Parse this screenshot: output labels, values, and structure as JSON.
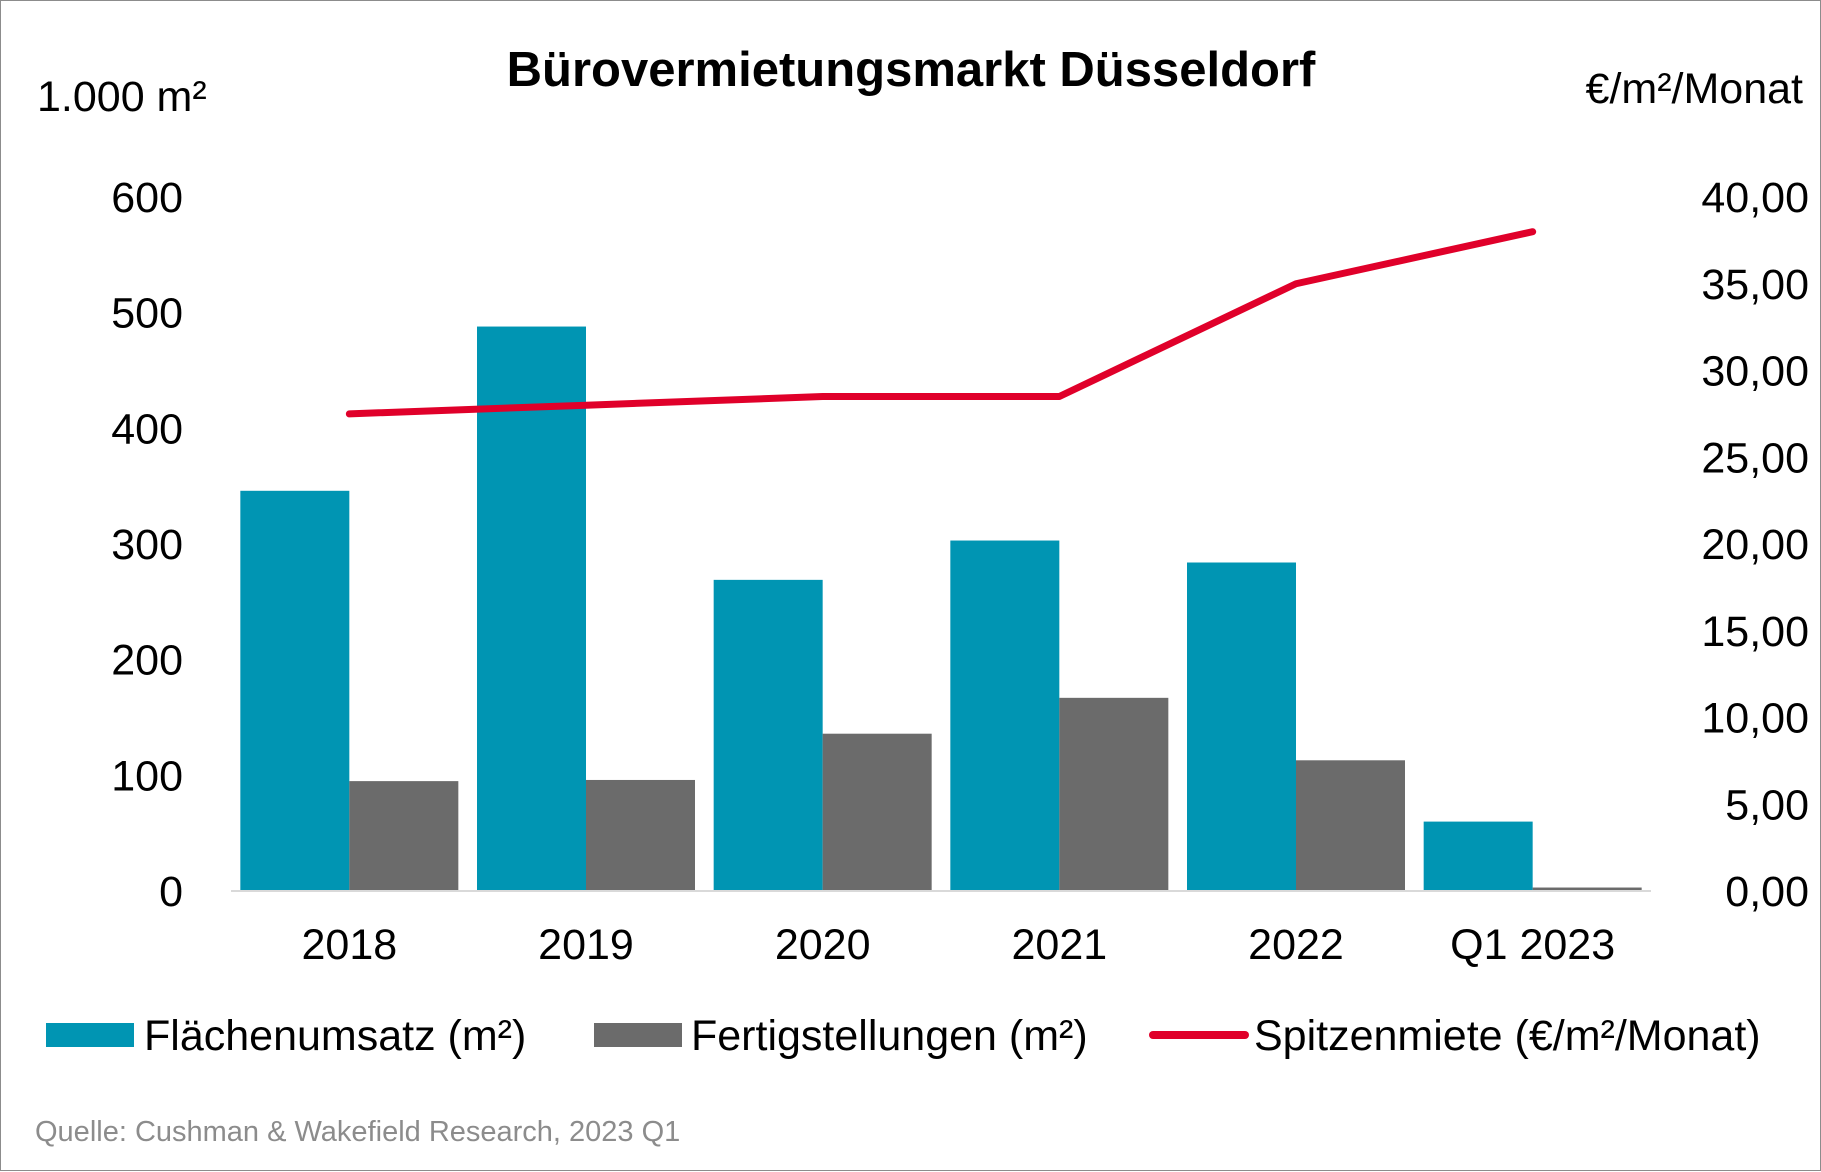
{
  "chart_data": {
    "type": "bar",
    "title": "Bürovermietungsmarkt Düsseldorf",
    "ylabel_left": "1.000 m²",
    "ylabel_right": "€/m²/Monat",
    "categories": [
      "2018",
      "2019",
      "2020",
      "2021",
      "2022",
      "Q1 2023"
    ],
    "ylim_left": [
      0,
      600
    ],
    "ylim_right": [
      0,
      40
    ],
    "yticks_left": [
      "0",
      "100",
      "200",
      "300",
      "400",
      "500",
      "600"
    ],
    "yticks_right": [
      "0,00",
      "5,00",
      "10,00",
      "15,00",
      "20,00",
      "25,00",
      "30,00",
      "35,00",
      "40,00"
    ],
    "series": [
      {
        "name": "Flächenumsatz (m²)",
        "kind": "bar",
        "axis": "left",
        "color": "#0095b3",
        "values": [
          346,
          488,
          269,
          303,
          284,
          60
        ]
      },
      {
        "name": "Fertigstellungen (m²)",
        "kind": "bar",
        "axis": "left",
        "color": "#6b6b6b",
        "values": [
          95,
          96,
          136,
          167,
          113,
          3
        ]
      },
      {
        "name": "Spitzenmiete (€/m²/Monat)",
        "kind": "line",
        "axis": "right",
        "color": "#e0002a",
        "values": [
          27.5,
          28.0,
          28.5,
          28.5,
          35.0,
          38.0
        ]
      }
    ],
    "grid": false,
    "legend": "bottom"
  },
  "source": "Quelle: Cushman & Wakefield Research, 2023 Q1"
}
